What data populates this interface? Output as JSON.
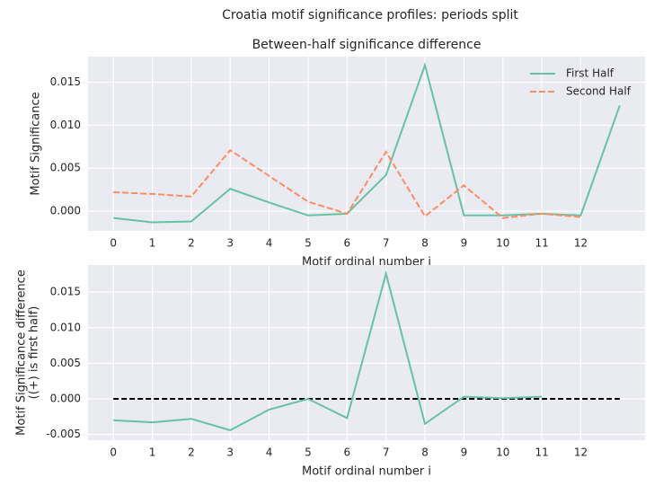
{
  "suptitle": "Croatia motif significance profiles: periods split",
  "chart_data": [
    {
      "type": "line",
      "title": "Between-half significance difference",
      "x_label": "Motif ordinal number i",
      "y_label": [
        "Motif Significance"
      ],
      "x": [
        0,
        1,
        2,
        3,
        4,
        5,
        6,
        7,
        8,
        9,
        10,
        11,
        12,
        13
      ],
      "xlim": [
        -0.65,
        13.65
      ],
      "xticks": [
        0,
        1,
        2,
        3,
        4,
        5,
        6,
        7,
        8,
        9,
        10,
        11,
        12
      ],
      "ylim": [
        -0.0023,
        0.018
      ],
      "yticks": [
        {
          "value": 0,
          "label": "0.000"
        },
        0.005,
        {
          "value": 0.01,
          "label": "0.010"
        },
        0.015
      ],
      "grid": true,
      "legend": "upper right",
      "series": [
        {
          "name": "First Half",
          "color": "#66c2a5",
          "dash": false,
          "values": [
            -0.0008,
            -0.0013,
            -0.0012,
            0.0026,
            0.001,
            -0.0005,
            -0.0003,
            0.0042,
            0.017,
            -0.0005,
            -0.0005,
            -0.0003,
            -0.0005,
            0.0123
          ]
        },
        {
          "name": "Second Half",
          "color": "#fc8d62",
          "dash": true,
          "values": [
            0.0022,
            0.002,
            0.0017,
            0.0071,
            0.0041,
            0.0011,
            -0.0003,
            0.0069,
            -0.0006,
            0.003,
            -0.0008,
            -0.0003,
            -0.0007,
            null
          ]
        }
      ]
    },
    {
      "type": "line",
      "x_label": "Motif ordinal number i",
      "y_label": [
        "Motif Significance difference",
        "((+) is first half)"
      ],
      "x": [
        0,
        1,
        2,
        3,
        4,
        5,
        6,
        7,
        8,
        9,
        10,
        11
      ],
      "xlim": [
        -0.65,
        13.65
      ],
      "xticks": [
        0,
        1,
        2,
        3,
        4,
        5,
        6,
        7,
        8,
        9,
        10,
        11,
        12
      ],
      "ylim": [
        -0.0058,
        0.0188
      ],
      "yticks": [
        -0.005,
        {
          "value": 0,
          "label": "0.000"
        },
        0.005,
        {
          "value": 0.01,
          "label": "0.010"
        },
        0.015
      ],
      "grid": true,
      "hline": {
        "value": 0,
        "x": [
          0,
          13
        ],
        "color": "#000000"
      },
      "series": [
        {
          "color": "#66c2a5",
          "dash": false,
          "values": [
            -0.003,
            -0.0033,
            -0.0028,
            -0.0044,
            -0.0015,
            0,
            -0.0027,
            0.0176,
            -0.0035,
            0.0003,
            0.0001,
            0.0003
          ]
        }
      ]
    }
  ]
}
